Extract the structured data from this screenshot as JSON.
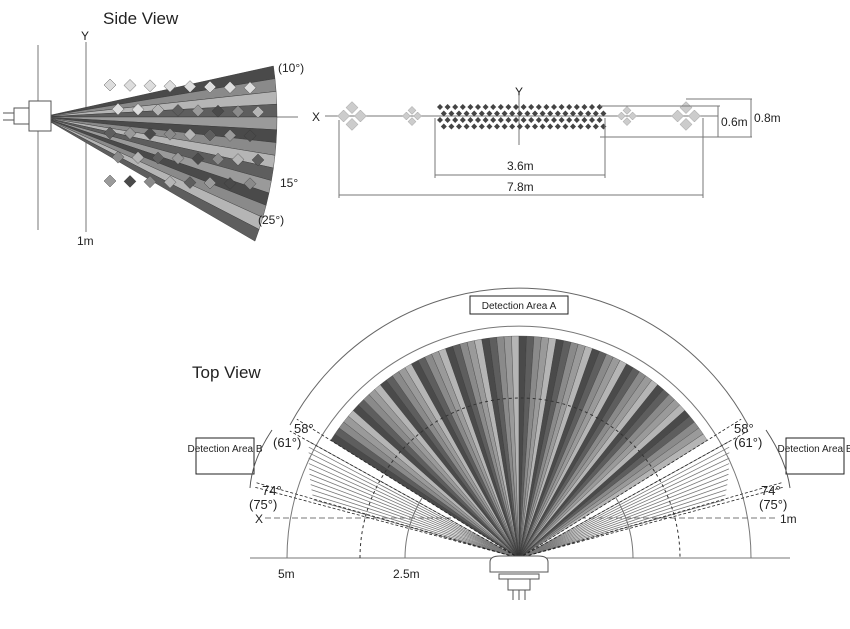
{
  "side_view": {
    "title": "Side View",
    "y_axis": "Y",
    "distance_label": "1m",
    "angles": {
      "top": "(10°)",
      "middle": "15°",
      "bottom": "(25°)"
    }
  },
  "front_pattern": {
    "x_axis": "X",
    "y_axis": "Y",
    "width_inner": "3.6m",
    "width_outer": "7.8m",
    "height_inner": "0.6m",
    "height_outer": "0.8m"
  },
  "top_view": {
    "title": "Top View",
    "area_a": "Detection Area A",
    "area_b_left": "Detection Area B",
    "area_b_right": "Detection Area B",
    "left_angle_a": "58°",
    "left_angle_a_alt": "(61°)",
    "left_angle_b": "74°",
    "left_angle_b_alt": "(75°)",
    "right_angle_a": "58°",
    "right_angle_a_alt": "(61°)",
    "right_angle_b": "74°",
    "right_angle_b_alt": "(75°)",
    "x_axis": "X",
    "dist_5m": "5m",
    "dist_2_5m": "2.5m",
    "dist_1m": "1m"
  },
  "colors": {
    "beam_dark": "#4a4a4a",
    "beam_mid": "#8a8a8a",
    "beam_light": "#b5b5b5"
  }
}
